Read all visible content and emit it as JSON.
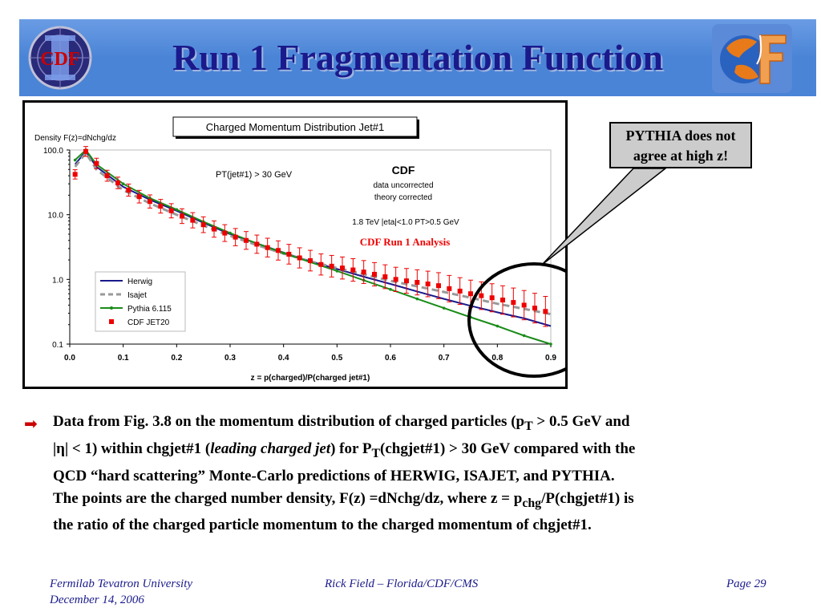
{
  "slide": {
    "title": "Run 1 Fragmentation Function",
    "left_logo_text": "CDF",
    "callout": [
      "PYTHIA does not",
      "agree at high z!"
    ],
    "description": {
      "l1_a": "Data from Fig. 3.8 on the momentum distribution of charged particles (p",
      "l1_sub": "T",
      "l1_b": " > 0.5 GeV and",
      "l2_a": "|η| < 1) within chgjet#1 (",
      "l2_em": "leading charged jet",
      "l2_b": ") for P",
      "l2_sub": "T",
      "l2_c": "(chgjet#1) > 30 GeV compared with the",
      "l3": "QCD “hard scattering” Monte-Carlo predictions of HERWIG, ISAJET, and PYTHIA.",
      "l4_a": "The points are the charged number density, F(z) =dNchg/dz, where z = p",
      "l4_sub": "chg",
      "l4_b": "/P(chgjet#1) is",
      "l5": "the ratio of the charged particle momentum to the charged momentum of chgjet#1."
    },
    "footer": {
      "left_1": "Fermilab Tevatron University",
      "left_2": "December 14, 2006",
      "center": "Rick Field – Florida/CDF/CMS",
      "right": "Page 29"
    },
    "colors": {
      "header": "#4a84d6",
      "title": "#1a1a8c",
      "herwig": "#1a1a8c",
      "isajet": "#999999",
      "pythia": "#1a8c1a",
      "data": "#ee0000",
      "analysis_text": "#ee0000",
      "bullet": "#cc0000"
    }
  },
  "chart_data": {
    "type": "line",
    "title": "Charged Momentum Distribution Jet#1",
    "xlabel": "z = p(charged)/P(charged jet#1)",
    "ylabel": "Density F(z)=dNchg/dz",
    "xlim": [
      0.0,
      0.9
    ],
    "ylim": [
      0.1,
      100.0
    ],
    "yscale": "log",
    "x_ticks": [
      "0.0",
      "0.1",
      "0.2",
      "0.3",
      "0.4",
      "0.5",
      "0.6",
      "0.7",
      "0.8",
      "0.9"
    ],
    "y_ticks": [
      "100.0",
      "10.0",
      "1.0",
      "0.1"
    ],
    "annotations": {
      "cut": "PT(jet#1) > 30 GeV",
      "experiment": "CDF",
      "note1": "data uncorrected",
      "note2": "theory corrected",
      "kinematics": "1.8 TeV |eta|<1.0 PT>0.5 GeV",
      "analysis": "CDF Run 1 Analysis"
    },
    "legend_placement": "bottom-left",
    "series": [
      {
        "name": "Herwig",
        "style": "line",
        "x": [
          0.01,
          0.03,
          0.05,
          0.1,
          0.15,
          0.2,
          0.25,
          0.3,
          0.35,
          0.4,
          0.45,
          0.5,
          0.55,
          0.6,
          0.65,
          0.7,
          0.75,
          0.8,
          0.85,
          0.9
        ],
        "y": [
          60,
          95,
          55,
          27,
          17,
          11.5,
          7.5,
          5.0,
          3.6,
          2.6,
          1.9,
          1.45,
          1.1,
          0.85,
          0.65,
          0.5,
          0.39,
          0.31,
          0.25,
          0.19
        ]
      },
      {
        "name": "Isajet",
        "style": "dashed",
        "x": [
          0.01,
          0.03,
          0.05,
          0.1,
          0.15,
          0.2,
          0.25,
          0.3,
          0.35,
          0.4,
          0.45,
          0.5,
          0.55,
          0.6,
          0.65,
          0.7,
          0.75,
          0.8,
          0.85,
          0.9
        ],
        "y": [
          55,
          90,
          50,
          24,
          15,
          10,
          6.8,
          4.7,
          3.4,
          2.5,
          1.9,
          1.5,
          1.2,
          0.95,
          0.78,
          0.64,
          0.52,
          0.42,
          0.35,
          0.29
        ]
      },
      {
        "name": "Pythia 6.115",
        "style": "line-markers",
        "x": [
          0.01,
          0.03,
          0.05,
          0.1,
          0.15,
          0.2,
          0.25,
          0.3,
          0.35,
          0.4,
          0.45,
          0.5,
          0.55,
          0.6,
          0.65,
          0.7,
          0.75,
          0.8,
          0.85,
          0.9
        ],
        "y": [
          70,
          100,
          60,
          30,
          18,
          12,
          7.8,
          5.2,
          3.6,
          2.55,
          1.85,
          1.35,
          0.97,
          0.7,
          0.5,
          0.36,
          0.26,
          0.19,
          0.135,
          0.1
        ]
      },
      {
        "name": "CDF JET20",
        "style": "points-errorbars",
        "x": [
          0.01,
          0.03,
          0.05,
          0.07,
          0.09,
          0.11,
          0.13,
          0.15,
          0.17,
          0.19,
          0.21,
          0.23,
          0.25,
          0.27,
          0.29,
          0.31,
          0.33,
          0.35,
          0.37,
          0.39,
          0.41,
          0.43,
          0.45,
          0.47,
          0.49,
          0.51,
          0.53,
          0.55,
          0.57,
          0.59,
          0.61,
          0.63,
          0.65,
          0.67,
          0.69,
          0.71,
          0.73,
          0.75,
          0.77,
          0.79,
          0.81,
          0.83,
          0.85,
          0.87,
          0.89
        ],
        "y": [
          42,
          95,
          62,
          40,
          31,
          24,
          19,
          16,
          13.5,
          11.5,
          9.5,
          8.2,
          7.0,
          6.0,
          5.2,
          4.5,
          4.0,
          3.5,
          3.1,
          2.8,
          2.45,
          2.15,
          1.95,
          1.7,
          1.6,
          1.5,
          1.4,
          1.3,
          1.2,
          1.1,
          1.0,
          0.95,
          0.9,
          0.85,
          0.8,
          0.72,
          0.66,
          0.6,
          0.56,
          0.52,
          0.48,
          0.44,
          0.4,
          0.36,
          0.32
        ]
      }
    ]
  }
}
